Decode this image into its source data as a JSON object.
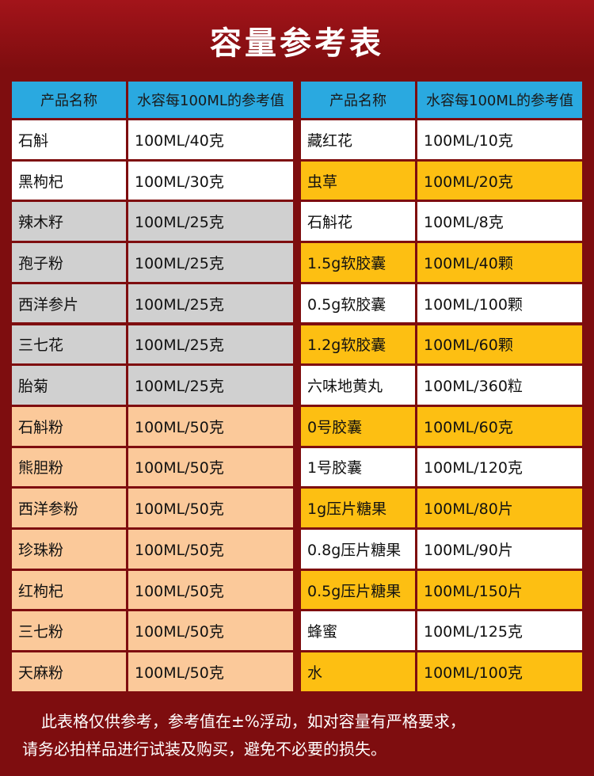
{
  "title": "容量参考表",
  "tables": [
    {
      "header": [
        "产品名称",
        "水容每100ML的参考值"
      ],
      "rows": [
        [
          "石斛",
          "100ML/40克"
        ],
        [
          "黑枸杞",
          "100ML/30克"
        ],
        [
          "辣木籽",
          "100ML/25克"
        ],
        [
          "孢子粉",
          "100ML/25克"
        ],
        [
          "西洋参片",
          "100ML/25克"
        ],
        [
          "三七花",
          "100ML/25克"
        ],
        [
          "胎菊",
          "100ML/25克"
        ],
        [
          "石斛粉",
          "100ML/50克"
        ],
        [
          "熊胆粉",
          "100ML/50克"
        ],
        [
          "西洋参粉",
          "100ML/50克"
        ],
        [
          "珍珠粉",
          "100ML/50克"
        ],
        [
          "红枸杞",
          "100ML/50克"
        ],
        [
          "三七粉",
          "100ML/50克"
        ],
        [
          "天麻粉",
          "100ML/50克"
        ]
      ]
    },
    {
      "header": [
        "产品名称",
        "水容每100ML的参考值"
      ],
      "rows": [
        [
          "藏红花",
          "100ML/10克"
        ],
        [
          "虫草",
          "100ML/20克"
        ],
        [
          "石斛花",
          "100ML/8克"
        ],
        [
          "1.5g软胶囊",
          "100ML/40颗"
        ],
        [
          "0.5g软胶囊",
          "100ML/100颗"
        ],
        [
          "1.2g软胶囊",
          "100ML/60颗"
        ],
        [
          "六味地黄丸",
          "100ML/360粒"
        ],
        [
          "0号胶囊",
          "100ML/60克"
        ],
        [
          "1号胶囊",
          "100ML/120克"
        ],
        [
          "1g压片糖果",
          "100ML/80片"
        ],
        [
          "0.8g压片糖果",
          "100ML/90片"
        ],
        [
          "0.5g压片糖果",
          "100ML/150片"
        ],
        [
          "蜂蜜",
          "100ML/125克"
        ],
        [
          "水",
          "100ML/100克"
        ]
      ]
    }
  ],
  "footnote": [
    "此表格仅供参考，参考值在±%浮动，如对容量有严格要求，",
    "请务必拍样品进行试装及购买，避免不必要的损失。"
  ]
}
